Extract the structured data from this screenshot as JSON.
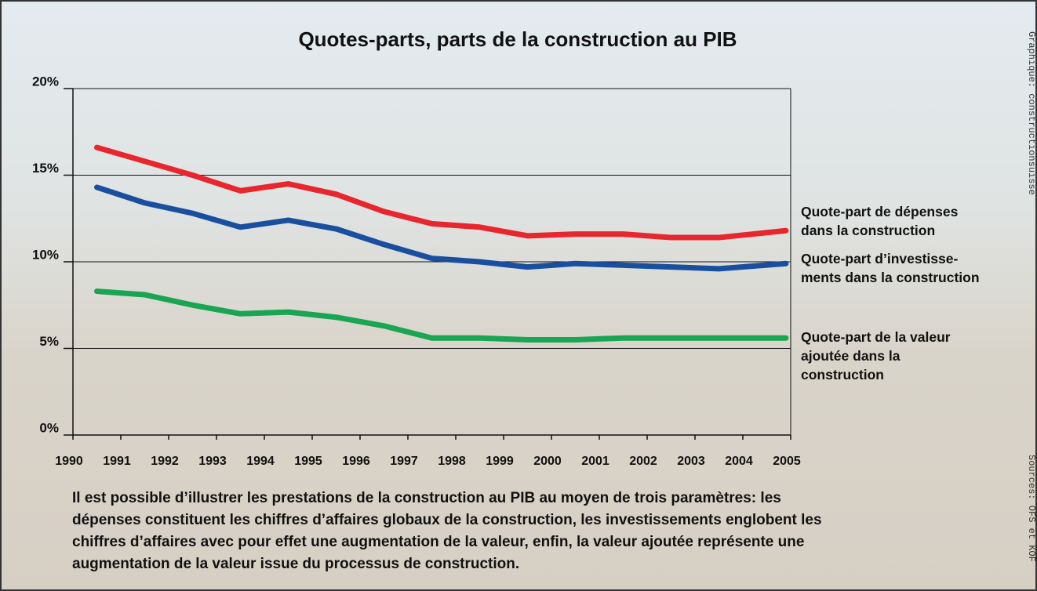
{
  "chart_data": {
    "type": "line",
    "title": "Quotes-parts, parts de la construction au PIB",
    "x": [
      1990.5,
      1991.5,
      1992.5,
      1993.5,
      1994.5,
      1995.5,
      1996.5,
      1997.5,
      1998.5,
      1999.5,
      2000.5,
      2001.5,
      2002.5,
      2003.5,
      2004.9
    ],
    "series": [
      {
        "name": "Quote-part de dépenses\ndans la construction",
        "color": "#e8262d",
        "values": [
          16.6,
          15.8,
          15.0,
          14.1,
          14.5,
          13.9,
          12.9,
          12.2,
          12.0,
          11.5,
          11.6,
          11.6,
          11.4,
          11.4,
          11.8
        ]
      },
      {
        "name": "Quote-part d’investisse-\nments dans la construction",
        "color": "#1a4fa0",
        "values": [
          14.3,
          13.4,
          12.8,
          12.0,
          12.4,
          11.9,
          11.0,
          10.2,
          10.0,
          9.7,
          9.9,
          9.8,
          9.7,
          9.6,
          9.9
        ]
      },
      {
        "name": "Quote-part de la valeur\najoutée dans la\nconstruction",
        "color": "#1aa552",
        "values": [
          8.3,
          8.1,
          7.5,
          7.0,
          7.1,
          6.8,
          6.3,
          5.6,
          5.6,
          5.5,
          5.5,
          5.6,
          5.6,
          5.6,
          5.6
        ]
      }
    ],
    "xlim": [
      1990,
      2005
    ],
    "xticks": [
      1990,
      1991,
      1992,
      1993,
      1994,
      1995,
      1996,
      1997,
      1998,
      1999,
      2000,
      2001,
      2002,
      2003,
      2004,
      2005
    ],
    "ylim": [
      0,
      20
    ],
    "yticks": [
      {
        "value": 0,
        "label": "0%"
      },
      {
        "value": 5,
        "label": "5%"
      },
      {
        "value": 10,
        "label": "10%"
      },
      {
        "value": 15,
        "label": "15%"
      },
      {
        "value": 20,
        "label": "20%"
      }
    ],
    "grid": true,
    "caption": "Il est possible d’illustrer les prestations de la construction au PIB au moyen de trois paramètres: les\ndépenses constituent les chiffres d’affaires globaux de la construction, les investissements englobent les\nchiffres d’affaires avec pour effet une augmentation de la valeur, enfin, la valeur ajoutée représente une\naugmentation de la valeur issue du processus de construction.",
    "credit": "Graphique: constructionsuisse",
    "sources": "Sources: OFS et KOF"
  }
}
